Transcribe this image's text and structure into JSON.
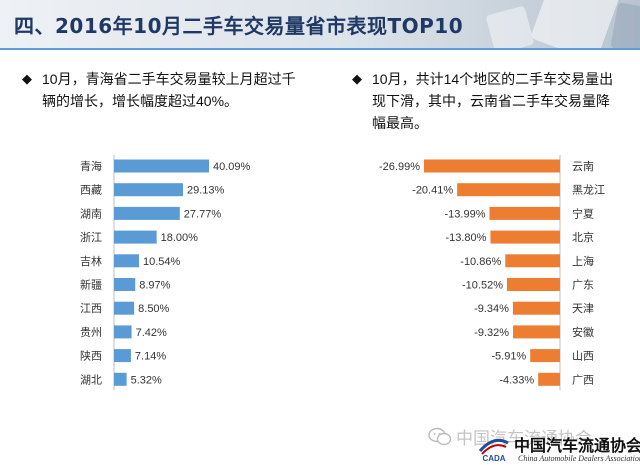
{
  "slide": {
    "title": "四、2016年10月二手车交易量省市表现TOP10",
    "left_note": "10月，青海省二手车交易量较上月超过千辆的增长，增长幅度超过40%。",
    "right_note": "10月，共计14个地区的二手车交易量出现下滑，其中，云南省二手车交易量降幅最高。",
    "bullet": "◆"
  },
  "footer": {
    "watermark": "中国汽车流通协会",
    "org_cn": "中国汽车流通协会",
    "org_en": "China Automobile Dealers Association",
    "logo_text": "CADA"
  },
  "colors": {
    "left_bars": "#5b9bd5",
    "right_bars": "#ed7d31",
    "title": "#1f3864"
  },
  "chart_data": [
    {
      "type": "bar",
      "orientation": "horizontal",
      "categories": [
        "青海",
        "西藏",
        "湖南",
        "浙江",
        "吉林",
        "新疆",
        "江西",
        "贵州",
        "陕西",
        "湖北"
      ],
      "values": [
        40.09,
        29.13,
        27.77,
        18.0,
        10.54,
        8.97,
        8.5,
        7.42,
        7.14,
        5.32
      ],
      "labels": [
        "40.09%",
        "29.13%",
        "27.77%",
        "18.00%",
        "10.54%",
        "8.97%",
        "8.50%",
        "7.42%",
        "7.14%",
        "5.32%"
      ],
      "unit": "%",
      "xlim": [
        0,
        45
      ]
    },
    {
      "type": "bar",
      "orientation": "horizontal",
      "categories": [
        "云南",
        "黑龙江",
        "宁夏",
        "北京",
        "上海",
        "广东",
        "天津",
        "安徽",
        "山西",
        "广西"
      ],
      "values": [
        -26.99,
        -20.41,
        -13.99,
        -13.8,
        -10.86,
        -10.52,
        -9.34,
        -9.32,
        -5.91,
        -4.33
      ],
      "labels": [
        "-26.99%",
        "-20.41%",
        "-13.99%",
        "-13.80%",
        "-10.86%",
        "-10.52%",
        "-9.34%",
        "-9.32%",
        "-5.91%",
        "-4.33%"
      ],
      "unit": "%",
      "xlim": [
        -30,
        0
      ]
    }
  ]
}
